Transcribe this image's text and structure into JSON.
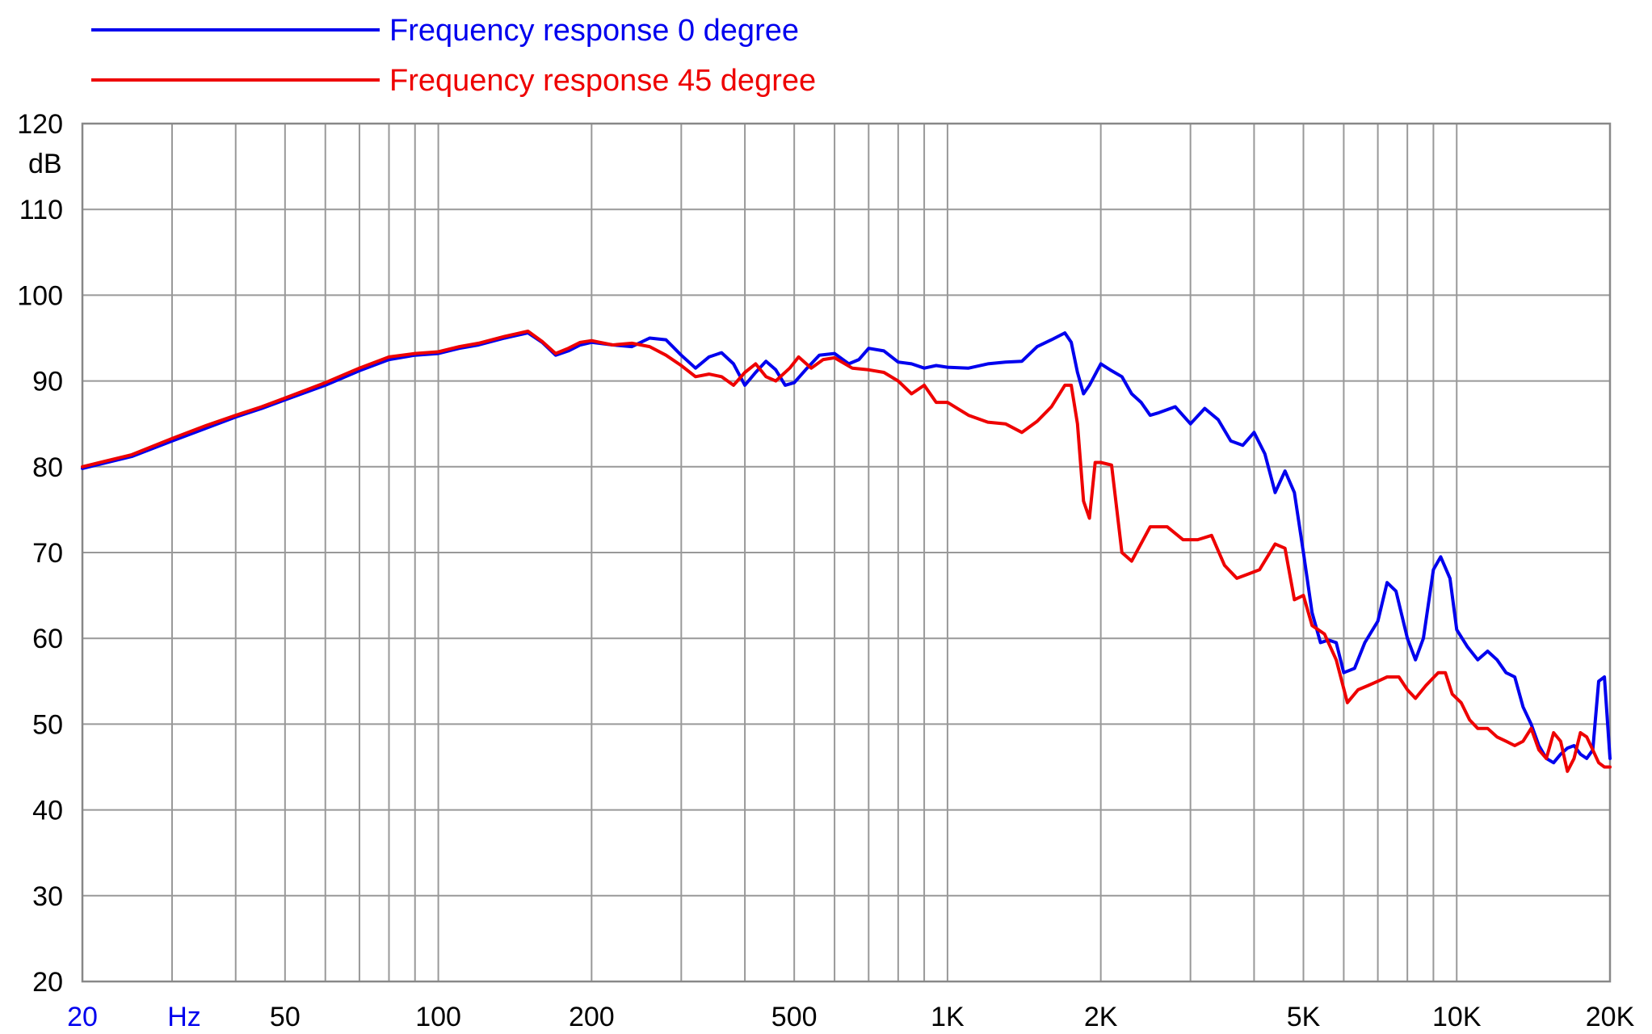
{
  "chart_data": {
    "type": "line",
    "title": "",
    "xlabel": "",
    "ylabel": "",
    "x_unit_label": "Hz",
    "y_unit_label": "dB",
    "x_scale": "log",
    "xlim": [
      20,
      20000
    ],
    "ylim": [
      20,
      120
    ],
    "grid": true,
    "legend_position": "top-left",
    "y_ticks": [
      {
        "value": 20,
        "label": "20"
      },
      {
        "value": 30,
        "label": "30"
      },
      {
        "value": 40,
        "label": "40"
      },
      {
        "value": 50,
        "label": "50"
      },
      {
        "value": 60,
        "label": "60"
      },
      {
        "value": 70,
        "label": "70"
      },
      {
        "value": 80,
        "label": "80"
      },
      {
        "value": 90,
        "label": "90"
      },
      {
        "value": 100,
        "label": "100"
      },
      {
        "value": 110,
        "label": "110"
      },
      {
        "value": 120,
        "label": "120"
      }
    ],
    "x_ticks": [
      {
        "value": 20,
        "label": "20",
        "color": "#0000ee"
      },
      {
        "value": 50,
        "label": "50"
      },
      {
        "value": 100,
        "label": "100"
      },
      {
        "value": 200,
        "label": "200"
      },
      {
        "value": 500,
        "label": "500"
      },
      {
        "value": 1000,
        "label": "1K"
      },
      {
        "value": 2000,
        "label": "2K"
      },
      {
        "value": 5000,
        "label": "5K"
      },
      {
        "value": 10000,
        "label": "10K"
      },
      {
        "value": 20000,
        "label": "20K"
      }
    ],
    "x_gridlines": [
      20,
      30,
      40,
      50,
      60,
      70,
      80,
      90,
      100,
      200,
      300,
      400,
      500,
      600,
      700,
      800,
      900,
      1000,
      2000,
      3000,
      4000,
      5000,
      6000,
      7000,
      8000,
      9000,
      10000,
      20000
    ],
    "series": [
      {
        "name": "Frequency response 0 degree",
        "color": "#0000ee",
        "points": [
          [
            20,
            79.8
          ],
          [
            25,
            81.2
          ],
          [
            30,
            83.0
          ],
          [
            35,
            84.5
          ],
          [
            40,
            85.8
          ],
          [
            45,
            86.8
          ],
          [
            50,
            87.8
          ],
          [
            60,
            89.5
          ],
          [
            70,
            91.2
          ],
          [
            80,
            92.5
          ],
          [
            90,
            93.0
          ],
          [
            100,
            93.2
          ],
          [
            110,
            93.8
          ],
          [
            120,
            94.2
          ],
          [
            135,
            95.0
          ],
          [
            150,
            95.6
          ],
          [
            160,
            94.5
          ],
          [
            170,
            93.0
          ],
          [
            180,
            93.5
          ],
          [
            190,
            94.2
          ],
          [
            200,
            94.5
          ],
          [
            220,
            94.2
          ],
          [
            240,
            94.0
          ],
          [
            260,
            95.0
          ],
          [
            280,
            94.8
          ],
          [
            300,
            93.0
          ],
          [
            320,
            91.5
          ],
          [
            340,
            92.8
          ],
          [
            360,
            93.3
          ],
          [
            380,
            92.0
          ],
          [
            400,
            89.5
          ],
          [
            420,
            91.0
          ],
          [
            440,
            92.3
          ],
          [
            460,
            91.3
          ],
          [
            480,
            89.5
          ],
          [
            500,
            89.8
          ],
          [
            530,
            91.5
          ],
          [
            560,
            93.0
          ],
          [
            600,
            93.2
          ],
          [
            640,
            92.0
          ],
          [
            670,
            92.5
          ],
          [
            700,
            93.8
          ],
          [
            750,
            93.5
          ],
          [
            800,
            92.2
          ],
          [
            850,
            92.0
          ],
          [
            900,
            91.5
          ],
          [
            950,
            91.8
          ],
          [
            1000,
            91.6
          ],
          [
            1100,
            91.5
          ],
          [
            1200,
            92.0
          ],
          [
            1300,
            92.2
          ],
          [
            1400,
            92.3
          ],
          [
            1500,
            94.0
          ],
          [
            1600,
            94.8
          ],
          [
            1700,
            95.6
          ],
          [
            1750,
            94.5
          ],
          [
            1800,
            91.0
          ],
          [
            1850,
            88.5
          ],
          [
            1900,
            89.5
          ],
          [
            2000,
            92.0
          ],
          [
            2100,
            91.2
          ],
          [
            2200,
            90.5
          ],
          [
            2300,
            88.5
          ],
          [
            2400,
            87.5
          ],
          [
            2500,
            86.0
          ],
          [
            2600,
            86.3
          ],
          [
            2800,
            87.0
          ],
          [
            3000,
            85.0
          ],
          [
            3200,
            86.8
          ],
          [
            3400,
            85.5
          ],
          [
            3600,
            83.0
          ],
          [
            3800,
            82.5
          ],
          [
            4000,
            84.0
          ],
          [
            4200,
            81.5
          ],
          [
            4400,
            77.0
          ],
          [
            4600,
            79.5
          ],
          [
            4800,
            77.0
          ],
          [
            5000,
            70.0
          ],
          [
            5200,
            63.0
          ],
          [
            5400,
            59.5
          ],
          [
            5600,
            59.8
          ],
          [
            5800,
            59.5
          ],
          [
            6000,
            56.0
          ],
          [
            6300,
            56.5
          ],
          [
            6600,
            59.5
          ],
          [
            7000,
            62.0
          ],
          [
            7300,
            66.5
          ],
          [
            7600,
            65.5
          ],
          [
            8000,
            60.0
          ],
          [
            8300,
            57.5
          ],
          [
            8600,
            60.0
          ],
          [
            9000,
            68.0
          ],
          [
            9300,
            69.5
          ],
          [
            9700,
            67.0
          ],
          [
            10000,
            61.0
          ],
          [
            10500,
            59.0
          ],
          [
            11000,
            57.5
          ],
          [
            11500,
            58.5
          ],
          [
            12000,
            57.5
          ],
          [
            12500,
            56.0
          ],
          [
            13000,
            55.5
          ],
          [
            13500,
            52.0
          ],
          [
            14000,
            50.0
          ],
          [
            14500,
            47.5
          ],
          [
            15000,
            46.0
          ],
          [
            15500,
            45.5
          ],
          [
            16000,
            46.5
          ],
          [
            16500,
            47.2
          ],
          [
            17000,
            47.5
          ],
          [
            17500,
            46.5
          ],
          [
            18000,
            46.0
          ],
          [
            18500,
            47.0
          ],
          [
            19000,
            55.0
          ],
          [
            19500,
            55.5
          ],
          [
            20000,
            46.0
          ]
        ]
      },
      {
        "name": "Frequency response 45 degree",
        "color": "#ee0000",
        "points": [
          [
            20,
            80.0
          ],
          [
            25,
            81.4
          ],
          [
            30,
            83.3
          ],
          [
            35,
            84.8
          ],
          [
            40,
            86.0
          ],
          [
            45,
            87.0
          ],
          [
            50,
            88.0
          ],
          [
            60,
            89.8
          ],
          [
            70,
            91.5
          ],
          [
            80,
            92.8
          ],
          [
            90,
            93.2
          ],
          [
            100,
            93.4
          ],
          [
            110,
            94.0
          ],
          [
            120,
            94.4
          ],
          [
            135,
            95.2
          ],
          [
            150,
            95.8
          ],
          [
            160,
            94.6
          ],
          [
            170,
            93.2
          ],
          [
            180,
            93.8
          ],
          [
            190,
            94.5
          ],
          [
            200,
            94.7
          ],
          [
            220,
            94.2
          ],
          [
            240,
            94.4
          ],
          [
            260,
            94.0
          ],
          [
            280,
            93.0
          ],
          [
            300,
            91.8
          ],
          [
            320,
            90.5
          ],
          [
            340,
            90.8
          ],
          [
            360,
            90.5
          ],
          [
            380,
            89.5
          ],
          [
            400,
            91.0
          ],
          [
            420,
            92.0
          ],
          [
            440,
            90.5
          ],
          [
            460,
            90.0
          ],
          [
            490,
            91.5
          ],
          [
            510,
            92.8
          ],
          [
            540,
            91.5
          ],
          [
            570,
            92.5
          ],
          [
            600,
            92.7
          ],
          [
            650,
            91.5
          ],
          [
            700,
            91.3
          ],
          [
            750,
            91.0
          ],
          [
            800,
            90.0
          ],
          [
            850,
            88.5
          ],
          [
            900,
            89.5
          ],
          [
            950,
            87.5
          ],
          [
            1000,
            87.5
          ],
          [
            1100,
            86.0
          ],
          [
            1200,
            85.2
          ],
          [
            1300,
            85.0
          ],
          [
            1400,
            84.0
          ],
          [
            1500,
            85.3
          ],
          [
            1600,
            87.0
          ],
          [
            1700,
            89.5
          ],
          [
            1750,
            89.5
          ],
          [
            1800,
            85.0
          ],
          [
            1850,
            76.0
          ],
          [
            1900,
            74.0
          ],
          [
            1950,
            80.5
          ],
          [
            2000,
            80.5
          ],
          [
            2100,
            80.2
          ],
          [
            2200,
            70.0
          ],
          [
            2300,
            69.0
          ],
          [
            2500,
            73.0
          ],
          [
            2700,
            73.0
          ],
          [
            2900,
            71.5
          ],
          [
            3100,
            71.5
          ],
          [
            3300,
            72.0
          ],
          [
            3500,
            68.5
          ],
          [
            3700,
            67.0
          ],
          [
            3900,
            67.5
          ],
          [
            4100,
            68.0
          ],
          [
            4400,
            71.0
          ],
          [
            4600,
            70.5
          ],
          [
            4800,
            64.5
          ],
          [
            5000,
            65.0
          ],
          [
            5200,
            61.5
          ],
          [
            5500,
            60.5
          ],
          [
            5800,
            57.5
          ],
          [
            6100,
            52.5
          ],
          [
            6400,
            54.0
          ],
          [
            6700,
            54.5
          ],
          [
            7000,
            55.0
          ],
          [
            7300,
            55.5
          ],
          [
            7700,
            55.5
          ],
          [
            8000,
            54.0
          ],
          [
            8300,
            53.0
          ],
          [
            8700,
            54.5
          ],
          [
            9200,
            56.0
          ],
          [
            9500,
            56.0
          ],
          [
            9800,
            53.5
          ],
          [
            10200,
            52.5
          ],
          [
            10600,
            50.5
          ],
          [
            11000,
            49.5
          ],
          [
            11500,
            49.5
          ],
          [
            12000,
            48.5
          ],
          [
            12500,
            48.0
          ],
          [
            13000,
            47.5
          ],
          [
            13500,
            48.0
          ],
          [
            14000,
            49.5
          ],
          [
            14500,
            47.0
          ],
          [
            15000,
            46.0
          ],
          [
            15500,
            49.0
          ],
          [
            16000,
            48.0
          ],
          [
            16500,
            44.5
          ],
          [
            17000,
            46.0
          ],
          [
            17500,
            49.0
          ],
          [
            18000,
            48.5
          ],
          [
            18500,
            47.0
          ],
          [
            19000,
            45.5
          ],
          [
            19500,
            45.0
          ],
          [
            20000,
            45.0
          ]
        ]
      }
    ]
  }
}
